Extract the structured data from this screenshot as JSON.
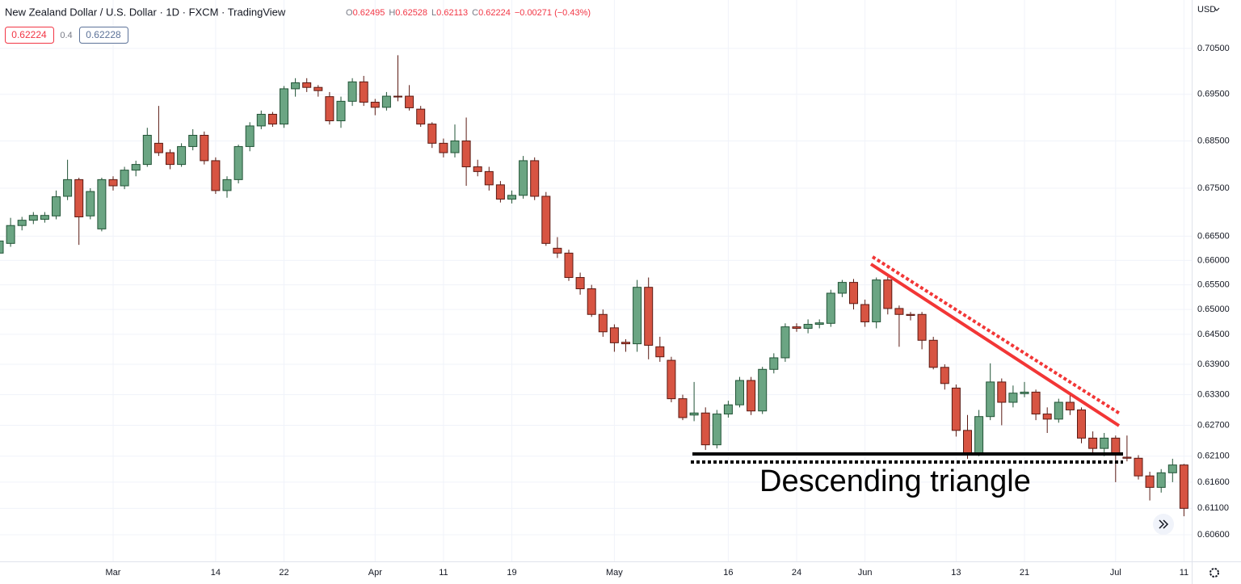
{
  "header": {
    "title": "New Zealand Dollar / U.S. Dollar · 1D · FXCM · TradingView",
    "o_label": "O",
    "o_value": "0.62495",
    "h_label": "H",
    "h_value": "0.62528",
    "l_label": "L",
    "l_value": "0.62113",
    "c_label": "C",
    "c_value": "0.62224",
    "change": "−0.00271 (−0.43%)",
    "sell": "0.62224",
    "spread": "0.4",
    "buy": "0.62228",
    "currency": "USD"
  },
  "annotation": "Descending triangle",
  "chart_data": {
    "type": "candlestick",
    "log_scale": true,
    "grid": true,
    "up_color": "#6ba583",
    "down_color": "#d75442",
    "ylim": [
      0.601,
      0.7157
    ],
    "yticks": [
      {
        "value": 0.705,
        "label": "0.70500"
      },
      {
        "value": 0.695,
        "label": "0.69500"
      },
      {
        "value": 0.685,
        "label": "0.68500"
      },
      {
        "value": 0.675,
        "label": "0.67500"
      },
      {
        "value": 0.665,
        "label": "0.66500"
      },
      {
        "value": 0.66,
        "label": "0.66000"
      },
      {
        "value": 0.655,
        "label": "0.65500"
      },
      {
        "value": 0.65,
        "label": "0.65000"
      },
      {
        "value": 0.645,
        "label": "0.64500"
      },
      {
        "value": 0.639,
        "label": "0.63900"
      },
      {
        "value": 0.633,
        "label": "0.63300"
      },
      {
        "value": 0.627,
        "label": "0.62700"
      },
      {
        "value": 0.621,
        "label": "0.62100"
      },
      {
        "value": 0.616,
        "label": "0.61600"
      },
      {
        "value": 0.611,
        "label": "0.61100"
      },
      {
        "value": 0.606,
        "label": "0.60600"
      }
    ],
    "categories": [
      null,
      null,
      null,
      null,
      null,
      null,
      null,
      null,
      null,
      null,
      "Mar",
      null,
      null,
      null,
      null,
      null,
      null,
      null,
      null,
      "14",
      null,
      null,
      null,
      null,
      null,
      "22",
      null,
      null,
      null,
      null,
      null,
      null,
      null,
      "Apr",
      null,
      null,
      null,
      null,
      null,
      "11",
      null,
      null,
      null,
      null,
      null,
      "19",
      null,
      null,
      null,
      null,
      null,
      null,
      null,
      null,
      "May",
      null,
      null,
      null,
      null,
      null,
      null,
      null,
      null,
      null,
      "16",
      null,
      null,
      null,
      null,
      null,
      "24",
      null,
      null,
      null,
      null,
      null,
      "Jun",
      null,
      null,
      null,
      null,
      null,
      null,
      null,
      "13",
      null,
      null,
      null,
      null,
      null,
      "21",
      null,
      null,
      null,
      null,
      null,
      null,
      null,
      "Jul",
      null,
      null,
      null,
      null,
      null,
      "11"
    ],
    "open": [
      0.6615,
      0.6635,
      0.6672,
      0.6683,
      0.6685,
      0.6692,
      0.6733,
      0.6768,
      0.6692,
      0.6665,
      0.6768,
      0.6755,
      0.6788,
      0.68,
      0.6845,
      0.6825,
      0.68,
      0.6838,
      0.6862,
      0.6808,
      0.6745,
      0.6768,
      0.6838,
      0.6882,
      0.6907,
      0.6886,
      0.6962,
      0.6975,
      0.6965,
      0.6945,
      0.6893,
      0.6935,
      0.6977,
      0.6933,
      0.6922,
      0.6946,
      0.6946,
      0.6918,
      0.6886,
      0.6845,
      0.6825,
      0.685,
      0.6795,
      0.6785,
      0.6757,
      0.6727,
      0.6735,
      0.6808,
      0.6733,
      0.6625,
      0.6615,
      0.6565,
      0.6542,
      0.649,
      0.6463,
      0.6434,
      0.6431,
      0.6545,
      0.6425,
      0.6398,
      0.6322,
      0.629,
      0.6294,
      0.6232,
      0.6292,
      0.631,
      0.6358,
      0.6298,
      0.638,
      0.6403,
      0.6465,
      0.6462,
      0.647,
      0.6472,
      0.6533,
      0.6555,
      0.651,
      0.6475,
      0.656,
      0.6502,
      0.649,
      0.649,
      0.6438,
      0.6384,
      0.6343,
      0.626,
      0.6215,
      0.6287,
      0.6355,
      0.6315,
      0.6332,
      0.6335,
      0.6292,
      0.6282,
      0.6315,
      0.63,
      0.6245,
      0.6225,
      0.6245,
      0.6208,
      0.6206,
      0.6172,
      0.615,
      0.6178,
      0.6193
    ],
    "high": [
      0.665,
      0.6688,
      0.669,
      0.67,
      0.67,
      0.6745,
      0.681,
      0.6772,
      0.675,
      0.6772,
      0.6775,
      0.6795,
      0.6808,
      0.6878,
      0.6925,
      0.6832,
      0.6845,
      0.6875,
      0.687,
      0.6815,
      0.6775,
      0.6842,
      0.689,
      0.6915,
      0.6912,
      0.6968,
      0.6985,
      0.6985,
      0.697,
      0.6955,
      0.6945,
      0.6985,
      0.699,
      0.694,
      0.6955,
      0.7035,
      0.697,
      0.6925,
      0.689,
      0.6855,
      0.6885,
      0.69,
      0.681,
      0.6795,
      0.6765,
      0.6745,
      0.6818,
      0.6815,
      0.6742,
      0.6648,
      0.6622,
      0.6575,
      0.655,
      0.65,
      0.647,
      0.644,
      0.656,
      0.6565,
      0.6445,
      0.6405,
      0.633,
      0.6355,
      0.6305,
      0.63,
      0.6318,
      0.6365,
      0.6365,
      0.6385,
      0.6412,
      0.6472,
      0.6472,
      0.648,
      0.648,
      0.654,
      0.656,
      0.6562,
      0.652,
      0.6565,
      0.6568,
      0.6508,
      0.6495,
      0.6495,
      0.6445,
      0.639,
      0.635,
      0.629,
      0.63,
      0.6392,
      0.6362,
      0.6348,
      0.6355,
      0.634,
      0.6305,
      0.6322,
      0.6335,
      0.6305,
      0.6258,
      0.6255,
      0.625,
      0.625,
      0.6212,
      0.618,
      0.6185,
      0.6205,
      0.6195
    ],
    "low": [
      0.6605,
      0.6628,
      0.6662,
      0.6675,
      0.6678,
      0.6685,
      0.6725,
      0.6632,
      0.6685,
      0.666,
      0.6745,
      0.6748,
      0.6775,
      0.6795,
      0.6818,
      0.679,
      0.6795,
      0.683,
      0.68,
      0.6738,
      0.673,
      0.676,
      0.6828,
      0.6875,
      0.688,
      0.6878,
      0.6945,
      0.6955,
      0.6945,
      0.6885,
      0.6878,
      0.6925,
      0.6925,
      0.6905,
      0.6915,
      0.6935,
      0.6915,
      0.688,
      0.6835,
      0.6815,
      0.6815,
      0.6755,
      0.6775,
      0.6745,
      0.672,
      0.6718,
      0.6728,
      0.6725,
      0.663,
      0.6605,
      0.6558,
      0.653,
      0.6485,
      0.6445,
      0.6415,
      0.6415,
      0.6415,
      0.64,
      0.6395,
      0.6315,
      0.628,
      0.6278,
      0.6222,
      0.6225,
      0.6285,
      0.6305,
      0.629,
      0.6292,
      0.6372,
      0.6395,
      0.6455,
      0.6452,
      0.6462,
      0.6465,
      0.6525,
      0.65,
      0.6465,
      0.6462,
      0.649,
      0.6425,
      0.6478,
      0.642,
      0.638,
      0.634,
      0.6248,
      0.6205,
      0.621,
      0.628,
      0.627,
      0.6305,
      0.6325,
      0.628,
      0.6255,
      0.6275,
      0.629,
      0.6235,
      0.6215,
      0.621,
      0.616,
      0.62,
      0.6165,
      0.6125,
      0.614,
      0.616,
      0.6095
    ],
    "close": [
      0.664,
      0.6672,
      0.6683,
      0.6693,
      0.6693,
      0.6732,
      0.6768,
      0.669,
      0.6743,
      0.6768,
      0.6755,
      0.6788,
      0.68,
      0.6862,
      0.6825,
      0.68,
      0.6838,
      0.6862,
      0.6808,
      0.6745,
      0.6768,
      0.6838,
      0.6882,
      0.6907,
      0.6886,
      0.6962,
      0.6975,
      0.6965,
      0.6958,
      0.6893,
      0.6935,
      0.6977,
      0.6933,
      0.6922,
      0.6946,
      0.6945,
      0.6921,
      0.6886,
      0.6845,
      0.6825,
      0.685,
      0.6795,
      0.6785,
      0.6757,
      0.6727,
      0.6735,
      0.6808,
      0.6733,
      0.6635,
      0.6615,
      0.6565,
      0.6542,
      0.649,
      0.6455,
      0.6433,
      0.6431,
      0.6545,
      0.6428,
      0.6405,
      0.6322,
      0.6285,
      0.6294,
      0.6232,
      0.6292,
      0.631,
      0.6358,
      0.6298,
      0.638,
      0.6403,
      0.6465,
      0.6462,
      0.647,
      0.6473,
      0.6533,
      0.6555,
      0.6512,
      0.6475,
      0.656,
      0.6502,
      0.649,
      0.6488,
      0.6438,
      0.6384,
      0.6352,
      0.626,
      0.6215,
      0.6287,
      0.6355,
      0.6315,
      0.6333,
      0.6335,
      0.6292,
      0.6282,
      0.6315,
      0.63,
      0.6245,
      0.6225,
      0.6245,
      0.6213,
      0.6206,
      0.6172,
      0.615,
      0.6178,
      0.6193,
      0.611
    ]
  }
}
